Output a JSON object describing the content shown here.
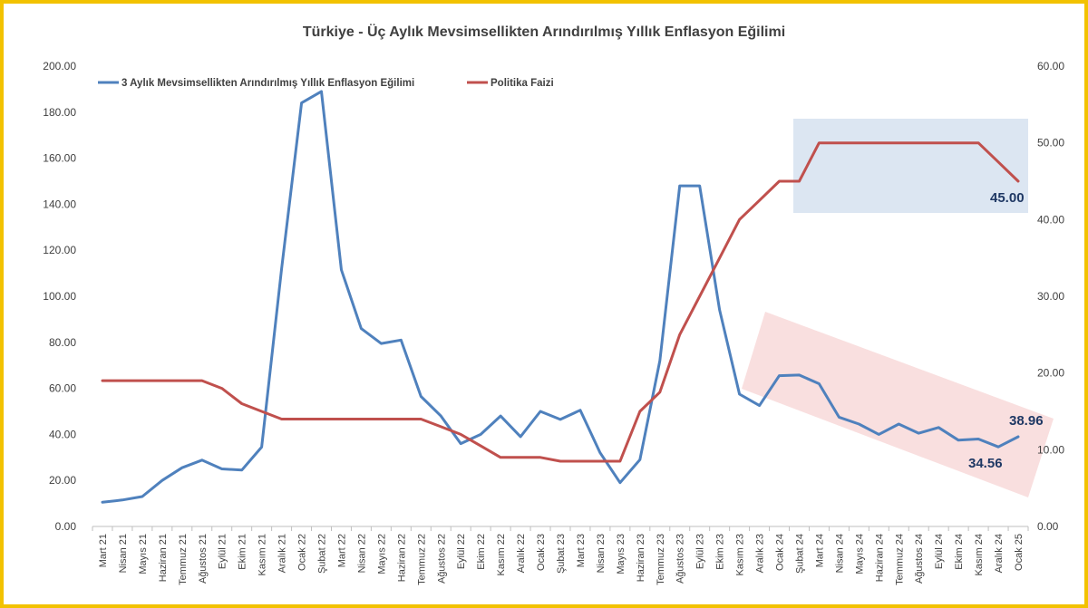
{
  "chart_data": {
    "type": "line",
    "title": "Türkiye - Üç Aylık Mevsimsellikten Arındırılmış Yıllık Enflasyon Eğilimi",
    "categories": [
      "Mart 21",
      "Nisan 21",
      "Mayıs 21",
      "Haziran 21",
      "Temmuz 21",
      "Ağustos 21",
      "Eylül 21",
      "Ekim 21",
      "Kasım 21",
      "Aralık 21",
      "Ocak 22",
      "Şubat 22",
      "Mart 22",
      "Nisan 22",
      "Mayıs 22",
      "Haziran 22",
      "Temmuz 22",
      "Ağustos 22",
      "Eylül 22",
      "Ekim 22",
      "Kasım 22",
      "Aralık 22",
      "Ocak 23",
      "Şubat 23",
      "Mart 23",
      "Nisan 23",
      "Mayıs 23",
      "Haziran 23",
      "Temmuz 23",
      "Ağustos 23",
      "Eylül 23",
      "Ekim 23",
      "Kasım 23",
      "Aralık 23",
      "Ocak 24",
      "Şubat 24",
      "Mart 24",
      "Nisan 24",
      "Mayıs 24",
      "Haziran 24",
      "Temmuz 24",
      "Ağustos 24",
      "Eylül 24",
      "Ekim 24",
      "Kasım 24",
      "Aralık 24",
      "Ocak 25"
    ],
    "series": [
      {
        "name": "3 Aylık Mevsimsellikten Arındırılmış Yıllık Enflasyon Eğilimi",
        "axis": "left",
        "color": "#4f81bd",
        "values": [
          10.5,
          11.5,
          13,
          20,
          25.5,
          28.8,
          25,
          24.5,
          34.5,
          112,
          184,
          189,
          111.5,
          86,
          79.5,
          81,
          56.5,
          48,
          36,
          40,
          48,
          39,
          50,
          46.5,
          50.5,
          32,
          19,
          29,
          72,
          148,
          148,
          94,
          57.5,
          52.5,
          65.5,
          65.8,
          62,
          47.5,
          44.5,
          40,
          44.5,
          40.5,
          43,
          37.5,
          38,
          34.56,
          38.96
        ]
      },
      {
        "name": "Politika Faizi",
        "axis": "right",
        "color": "#c0504d",
        "values": [
          19,
          19,
          19,
          19,
          19,
          19,
          18,
          16,
          15,
          14,
          14,
          14,
          14,
          14,
          14,
          14,
          14,
          13,
          12,
          10.5,
          9,
          9,
          9,
          8.5,
          8.5,
          8.5,
          8.5,
          15,
          17.5,
          25,
          30,
          35,
          40,
          42.5,
          45,
          45,
          50,
          50,
          50,
          50,
          50,
          50,
          50,
          50,
          50,
          47.5,
          45
        ]
      }
    ],
    "y_left": {
      "min": 0,
      "max": 200,
      "step": 20,
      "decimals": 2
    },
    "y_right": {
      "min": 0,
      "max": 60,
      "step": 10,
      "decimals": 2
    },
    "legend_position": "top-left",
    "grid": false,
    "annotations": [
      {
        "text": "45.00"
      },
      {
        "text": "38.96"
      },
      {
        "text": "34.56"
      }
    ],
    "highlight_colors": {
      "rate_box": "#dce6f2",
      "trend_band": "#f8d9d9"
    }
  }
}
